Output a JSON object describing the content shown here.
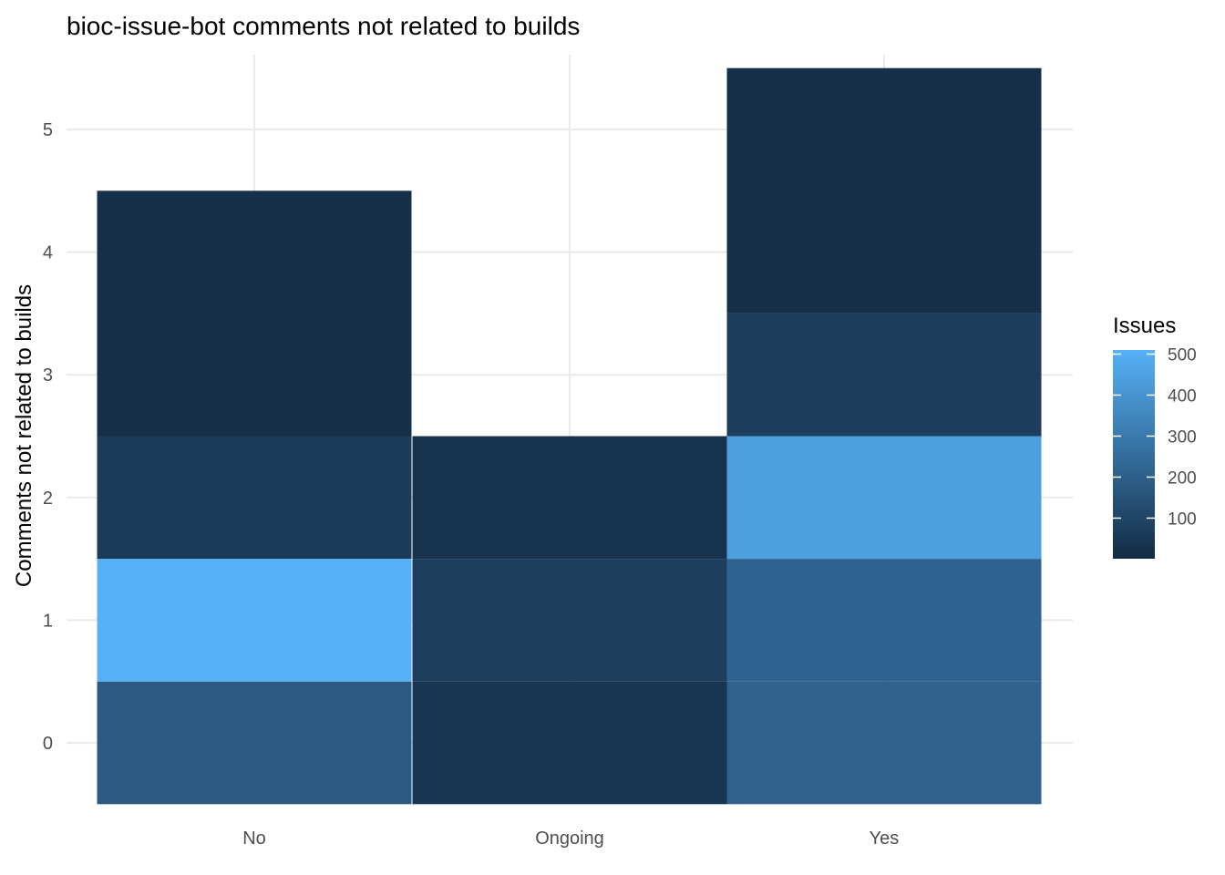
{
  "chart_data": {
    "type": "heatmap",
    "title": "bioc-issue-bot comments not related to builds",
    "xlabel": "",
    "ylabel": "Comments not related to builds",
    "x_categories": [
      "No",
      "Ongoing",
      "Yes"
    ],
    "y_ticks": [
      0,
      1,
      2,
      3,
      4,
      5
    ],
    "ylim": [
      -0.5,
      5.5
    ],
    "grid": true,
    "legend": {
      "title": "Issues",
      "position": "right",
      "range": [
        1,
        510
      ],
      "ticks": [
        100,
        200,
        300,
        400,
        500
      ],
      "color_low": "#132B43",
      "color_high": "#56B1F7"
    },
    "tiles": [
      {
        "x": "No",
        "y_min": -0.5,
        "y_max": 0.5,
        "value": 175
      },
      {
        "x": "No",
        "y_min": 0.5,
        "y_max": 1.5,
        "value": 510
      },
      {
        "x": "No",
        "y_min": 1.5,
        "y_max": 2.5,
        "value": 60
      },
      {
        "x": "No",
        "y_min": 2.5,
        "y_max": 4.5,
        "value": 20
      },
      {
        "x": "Ongoing",
        "y_min": -0.5,
        "y_max": 0.5,
        "value": 40
      },
      {
        "x": "Ongoing",
        "y_min": 0.5,
        "y_max": 1.5,
        "value": 75
      },
      {
        "x": "Ongoing",
        "y_min": 1.5,
        "y_max": 2.5,
        "value": 30
      },
      {
        "x": "Yes",
        "y_min": -0.5,
        "y_max": 0.5,
        "value": 210
      },
      {
        "x": "Yes",
        "y_min": 0.5,
        "y_max": 1.5,
        "value": 215
      },
      {
        "x": "Yes",
        "y_min": 1.5,
        "y_max": 2.5,
        "value": 440
      },
      {
        "x": "Yes",
        "y_min": 2.5,
        "y_max": 3.5,
        "value": 70
      },
      {
        "x": "Yes",
        "y_min": 3.5,
        "y_max": 5.5,
        "value": 20
      }
    ]
  }
}
